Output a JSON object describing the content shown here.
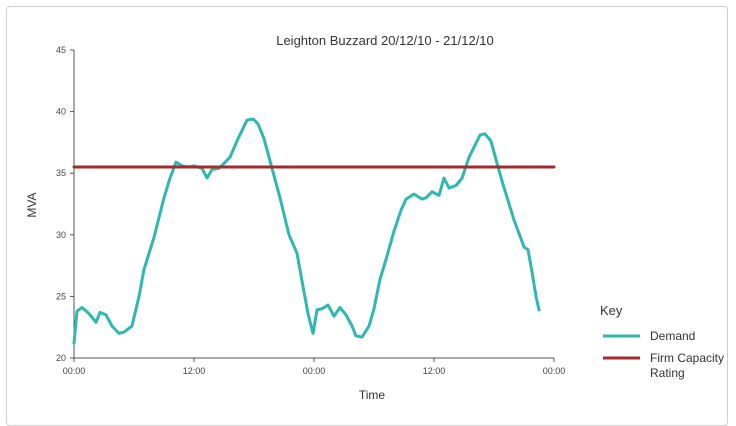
{
  "chart_data": {
    "type": "line",
    "title": "Leighton Buzzard 20/12/10 - 21/12/10",
    "xlabel": "Time",
    "ylabel": "MVA",
    "ylim": [
      20,
      45
    ],
    "yticks": [
      "20",
      "25",
      "30",
      "35",
      "40",
      "45"
    ],
    "xlim": [
      0,
      48
    ],
    "xticks": [
      {
        "value": 0,
        "label": "00:00"
      },
      {
        "value": 12,
        "label": "12:00"
      },
      {
        "value": 24,
        "label": "00:00"
      },
      {
        "value": 36,
        "label": "12:00"
      },
      {
        "value": 48,
        "label": "00:00"
      }
    ],
    "legend_title": "Key",
    "legend_position": "right",
    "series": [
      {
        "name": "Demand",
        "color": "#2fb8b0",
        "points": [
          [
            0.0,
            21.2
          ],
          [
            0.3,
            23.8
          ],
          [
            0.8,
            24.1
          ],
          [
            1.5,
            23.6
          ],
          [
            2.2,
            22.9
          ],
          [
            2.6,
            23.7
          ],
          [
            3.2,
            23.5
          ],
          [
            3.8,
            22.6
          ],
          [
            4.5,
            22.0
          ],
          [
            5.0,
            22.1
          ],
          [
            5.8,
            22.6
          ],
          [
            6.5,
            25.0
          ],
          [
            7.0,
            27.2
          ],
          [
            8.0,
            29.8
          ],
          [
            9.0,
            33.0
          ],
          [
            9.6,
            34.6
          ],
          [
            10.2,
            35.9
          ],
          [
            10.8,
            35.6
          ],
          [
            11.5,
            35.5
          ],
          [
            12.0,
            35.6
          ],
          [
            12.8,
            35.4
          ],
          [
            13.3,
            34.6
          ],
          [
            13.8,
            35.3
          ],
          [
            14.5,
            35.4
          ],
          [
            15.0,
            35.8
          ],
          [
            15.6,
            36.3
          ],
          [
            16.4,
            37.8
          ],
          [
            17.3,
            39.3
          ],
          [
            17.9,
            39.4
          ],
          [
            18.4,
            39.0
          ],
          [
            19.0,
            37.8
          ],
          [
            19.8,
            35.4
          ],
          [
            20.6,
            33.0
          ],
          [
            21.5,
            30.0
          ],
          [
            22.3,
            28.5
          ],
          [
            22.9,
            25.8
          ],
          [
            23.4,
            23.6
          ],
          [
            23.9,
            22.0
          ],
          [
            24.3,
            23.9
          ],
          [
            24.8,
            24.0
          ],
          [
            25.4,
            24.3
          ],
          [
            26.0,
            23.4
          ],
          [
            26.6,
            24.1
          ],
          [
            27.2,
            23.5
          ],
          [
            27.8,
            22.6
          ],
          [
            28.2,
            21.8
          ],
          [
            28.8,
            21.7
          ],
          [
            29.5,
            22.6
          ],
          [
            30.0,
            24.0
          ],
          [
            30.6,
            26.4
          ],
          [
            31.2,
            28.0
          ],
          [
            32.0,
            30.3
          ],
          [
            32.7,
            32.0
          ],
          [
            33.2,
            32.9
          ],
          [
            34.0,
            33.3
          ],
          [
            34.8,
            32.9
          ],
          [
            35.2,
            33.0
          ],
          [
            35.8,
            33.5
          ],
          [
            36.5,
            33.2
          ],
          [
            37.0,
            34.6
          ],
          [
            37.5,
            33.8
          ],
          [
            38.2,
            34.0
          ],
          [
            38.8,
            34.6
          ],
          [
            39.5,
            36.3
          ],
          [
            40.0,
            37.1
          ],
          [
            40.6,
            38.1
          ],
          [
            41.1,
            38.2
          ],
          [
            41.7,
            37.6
          ],
          [
            42.3,
            35.8
          ],
          [
            42.9,
            34.1
          ],
          [
            43.4,
            32.8
          ],
          [
            44.0,
            31.2
          ],
          [
            44.6,
            29.9
          ],
          [
            45.0,
            29.0
          ],
          [
            45.4,
            28.8
          ],
          [
            45.8,
            27.0
          ],
          [
            46.2,
            25.0
          ],
          [
            46.5,
            23.9
          ]
        ]
      },
      {
        "name": "Firm Capacity Rating",
        "color": "#a52a2a",
        "points": [
          [
            0,
            35.5
          ],
          [
            48,
            35.5
          ]
        ]
      }
    ]
  }
}
